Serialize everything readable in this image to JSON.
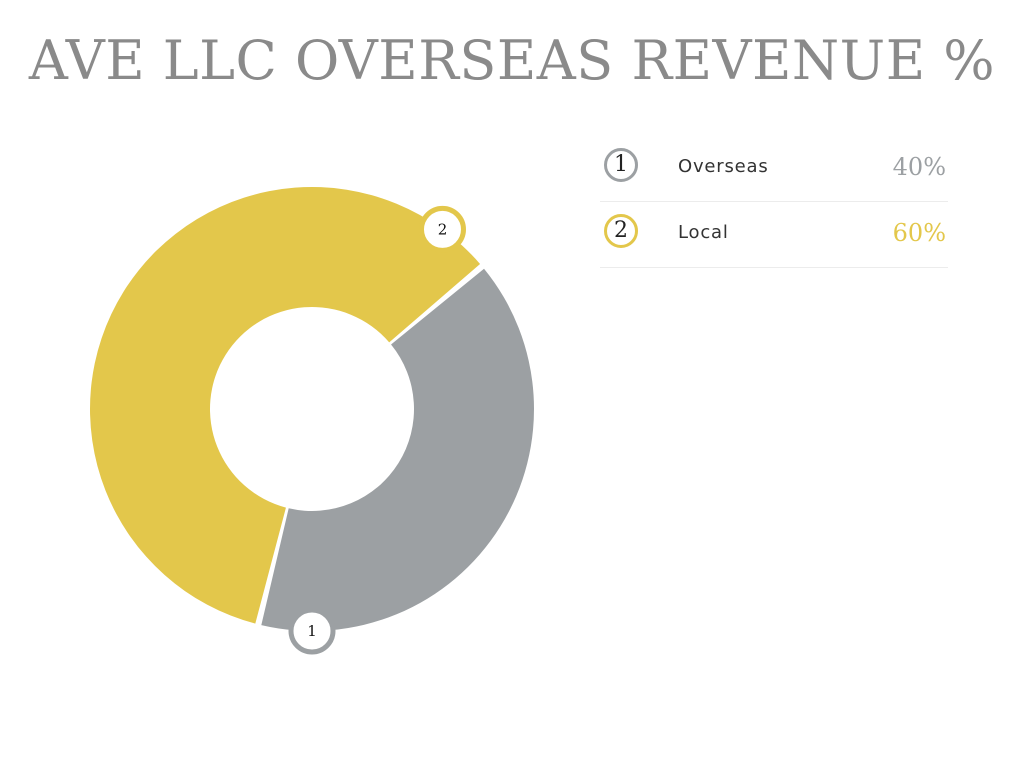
{
  "chart_data": {
    "type": "pie",
    "title": "AVE LLC OVERSEAS REVENUE %",
    "categories": [
      "Overseas",
      "Local"
    ],
    "values": [
      40,
      60
    ],
    "value_labels": [
      "40%",
      "60%"
    ],
    "markers": [
      "1",
      "2"
    ],
    "colors": [
      "#9ca0a3",
      "#e3c74b"
    ],
    "donut": true,
    "legend_position": "right"
  }
}
